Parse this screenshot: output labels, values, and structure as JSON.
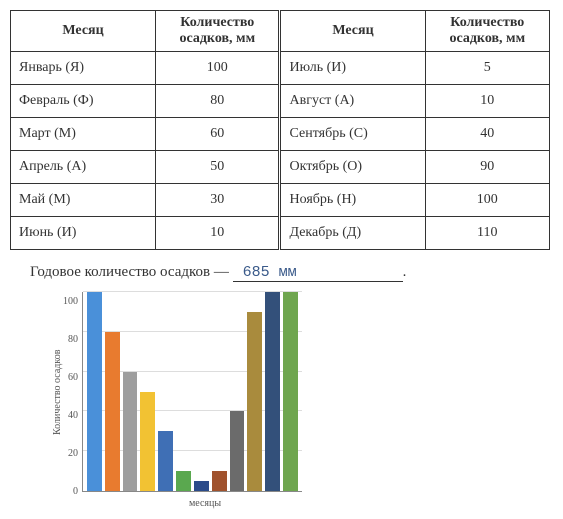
{
  "table": {
    "headers": {
      "month": "Месяц",
      "amount": "Количество осадков, мм"
    },
    "left": [
      {
        "month": "Январь (Я)",
        "value": 100
      },
      {
        "month": "Февраль (Ф)",
        "value": 80
      },
      {
        "month": "Март (М)",
        "value": 60
      },
      {
        "month": "Апрель (А)",
        "value": 50
      },
      {
        "month": "Май (М)",
        "value": 30
      },
      {
        "month": "Июнь (И)",
        "value": 10
      }
    ],
    "right": [
      {
        "month": "Июль (И)",
        "value": 5
      },
      {
        "month": "Август (А)",
        "value": 10
      },
      {
        "month": "Сентябрь (С)",
        "value": 40
      },
      {
        "month": "Октябрь (О)",
        "value": 90
      },
      {
        "month": "Ноябрь (Н)",
        "value": 100
      },
      {
        "month": "Декабрь (Д)",
        "value": 110
      }
    ]
  },
  "summary": {
    "label": "Годовое количество осадков —",
    "value": "685  мм",
    "trail": "."
  },
  "chart": {
    "type": "bar",
    "ylabel": "Количество осадков",
    "xlabel": "месяцы",
    "ymax": 100,
    "ytick_step": 20,
    "yticks": [
      100,
      80,
      60,
      40,
      20,
      0
    ],
    "grid_color": "#dddddd",
    "axis_color": "#888888",
    "background_color": "#ffffff",
    "bars": [
      {
        "value": 100,
        "color": "#4a90d9"
      },
      {
        "value": 80,
        "color": "#e87b2f"
      },
      {
        "value": 60,
        "color": "#9e9e9e"
      },
      {
        "value": 50,
        "color": "#f2c233"
      },
      {
        "value": 30,
        "color": "#3f6fb5"
      },
      {
        "value": 10,
        "color": "#5aa84f"
      },
      {
        "value": 5,
        "color": "#2b4b8a"
      },
      {
        "value": 10,
        "color": "#a0522d"
      },
      {
        "value": 40,
        "color": "#6b6b6b"
      },
      {
        "value": 90,
        "color": "#a98b3d"
      },
      {
        "value": 100,
        "color": "#33507a"
      },
      {
        "value": 110,
        "color": "#6fa64f"
      }
    ]
  }
}
